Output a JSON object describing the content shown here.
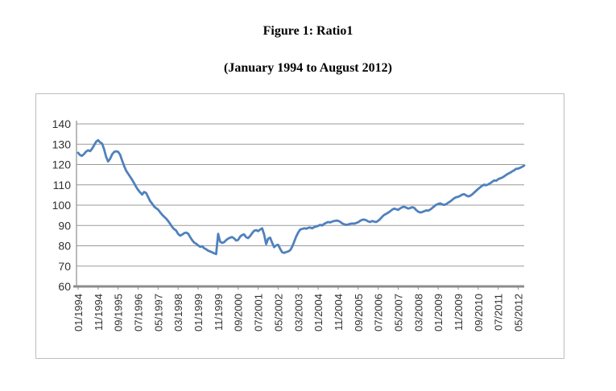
{
  "titles": {
    "figure": "Figure 1: Ratio1",
    "range": "(January 1994 to August 2012)"
  },
  "chart_data": {
    "type": "line",
    "title": "Figure 1: Ratio1",
    "subtitle": "(January 1994 to August 2012)",
    "x_unit": "month",
    "x_start": "01/1994",
    "x_end": "08/2012",
    "n_points": 224,
    "ylim": [
      60,
      140
    ],
    "y_ticks": [
      60,
      70,
      80,
      90,
      100,
      110,
      120,
      130,
      140
    ],
    "x_tick_indices": [
      0,
      10,
      20,
      30,
      40,
      50,
      60,
      70,
      80,
      90,
      100,
      110,
      120,
      130,
      140,
      150,
      160,
      170,
      180,
      190,
      200,
      210,
      220
    ],
    "x_tick_labels": [
      "01/1994",
      "11/1994",
      "09/1995",
      "07/1996",
      "05/1997",
      "03/1998",
      "01/1999",
      "11/1999",
      "09/2000",
      "07/2001",
      "05/2002",
      "03/2003",
      "01/2004",
      "11/2004",
      "09/2005",
      "07/2006",
      "05/2007",
      "03/2008",
      "01/2009",
      "11/2009",
      "09/2010",
      "07/2011",
      "05/2012"
    ],
    "grid": true,
    "legend_position": "none",
    "colors": {
      "line": "#4F81BD",
      "gridline": "#9a9a9a",
      "axis": "#8c8c8c",
      "tick_label": "#303030",
      "frame_border": "#bdbdbd",
      "background": "#ffffff"
    },
    "series": [
      {
        "name": "Ratio1",
        "color": "#4F81BD",
        "values": [
          125.8,
          124.6,
          124.3,
          125.2,
          126.4,
          127.0,
          126.6,
          127.8,
          129.5,
          131.2,
          132.0,
          130.9,
          130.3,
          127.5,
          123.8,
          121.5,
          122.8,
          125.0,
          126.2,
          126.5,
          126.3,
          124.8,
          122.0,
          119.3,
          117.0,
          115.5,
          114.0,
          112.5,
          110.8,
          109.0,
          107.5,
          106.3,
          105.2,
          106.5,
          106.0,
          104.0,
          102.0,
          100.8,
          99.3,
          98.5,
          97.8,
          96.5,
          95.3,
          94.3,
          93.4,
          92.2,
          90.8,
          89.3,
          88.2,
          87.5,
          85.8,
          85.0,
          85.5,
          86.2,
          86.5,
          86.0,
          84.3,
          82.8,
          81.6,
          81.0,
          80.2,
          79.5,
          79.8,
          78.8,
          78.3,
          77.6,
          77.2,
          76.8,
          76.3,
          75.9,
          85.9,
          82.0,
          81.4,
          81.8,
          82.8,
          83.5,
          84.0,
          84.3,
          83.6,
          82.6,
          82.9,
          84.5,
          85.3,
          85.6,
          84.2,
          83.8,
          84.8,
          86.2,
          87.4,
          87.7,
          87.2,
          88.0,
          88.6,
          85.5,
          80.8,
          83.5,
          84.0,
          81.5,
          79.3,
          80.2,
          80.5,
          78.5,
          76.8,
          76.5,
          76.9,
          77.2,
          77.8,
          79.5,
          82.0,
          84.5,
          86.5,
          88.0,
          88.3,
          88.6,
          88.4,
          88.8,
          89.0,
          88.6,
          89.2,
          89.5,
          89.8,
          90.3,
          90.0,
          90.8,
          91.3,
          91.7,
          91.5,
          91.9,
          92.2,
          92.4,
          92.3,
          91.8,
          91.0,
          90.6,
          90.3,
          90.5,
          90.8,
          91.0,
          90.9,
          91.2,
          91.6,
          92.3,
          92.8,
          92.9,
          92.6,
          92.0,
          91.7,
          92.2,
          91.9,
          91.7,
          92.3,
          93.2,
          94.3,
          95.2,
          95.7,
          96.3,
          97.0,
          97.8,
          98.3,
          98.0,
          97.7,
          98.4,
          99.0,
          99.2,
          98.8,
          98.3,
          98.6,
          99.0,
          98.7,
          97.6,
          96.8,
          96.4,
          96.6,
          97.0,
          97.4,
          97.3,
          97.8,
          98.6,
          99.4,
          100.2,
          100.6,
          100.9,
          100.4,
          100.1,
          100.5,
          101.2,
          101.8,
          102.6,
          103.4,
          103.9,
          104.1,
          104.6,
          105.2,
          105.4,
          104.8,
          104.3,
          104.6,
          105.3,
          106.2,
          107.1,
          108.0,
          108.8,
          109.6,
          110.1,
          109.8,
          110.2,
          110.8,
          111.5,
          112.2,
          112.0,
          112.8,
          113.2,
          113.6,
          114.2,
          114.9,
          115.5,
          116.0,
          116.6,
          117.2,
          117.9,
          118.0,
          118.4,
          118.9,
          119.5
        ]
      }
    ]
  }
}
